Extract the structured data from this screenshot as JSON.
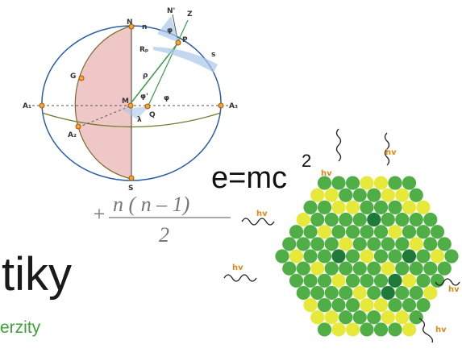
{
  "diagram": {
    "labels": [
      "N",
      "N'",
      "Z",
      "φ",
      "n",
      "P",
      "Rₚ",
      "s",
      "G",
      "ρ",
      "M",
      "φ'",
      "φ",
      "λ",
      "Q",
      "A₁",
      "A₃",
      "A₂",
      "S"
    ]
  },
  "formulas": {
    "energy": "e=mc",
    "energy_exponent": "2",
    "fraction": {
      "prefix": "+",
      "numerator": "n ( n – 1)",
      "denominator": "2"
    }
  },
  "photons": [
    "hv",
    "hv",
    "hv",
    "hv",
    "hv",
    "hv"
  ],
  "heading": "tiky",
  "subheading": "erzity"
}
